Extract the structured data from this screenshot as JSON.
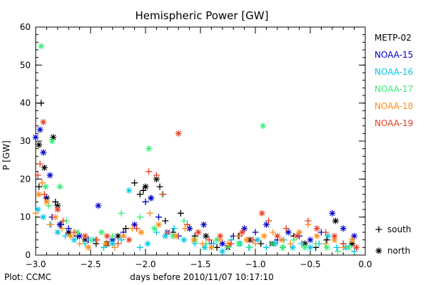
{
  "chart_data": {
    "type": "scatter",
    "title": "Hemispheric Power [GW]",
    "xlabel": "days before 2010/11/07 10:17:10",
    "ylabel": "P [GW]",
    "xlim": [
      -3.0,
      0.0
    ],
    "ylim": [
      0,
      60
    ],
    "x_ticks": [
      -3.0,
      -2.5,
      -2.0,
      -1.5,
      -1.0,
      -0.5,
      0.0
    ],
    "x_tick_labels": [
      "−3.0",
      "−2.5",
      "−2.0",
      "−1.5",
      "−1.0",
      "−0.5",
      "0.0"
    ],
    "y_ticks": [
      0,
      10,
      20,
      30,
      40,
      50,
      60
    ],
    "y_tick_labels": [
      "0",
      "10",
      "20",
      "30",
      "40",
      "50",
      "60"
    ],
    "credit": "Plot: CCMC",
    "legend_position": "right",
    "hemisphere_legend": [
      {
        "symbol": "+",
        "label": "south",
        "marker": "plus"
      },
      {
        "symbol": "*",
        "label": "north",
        "marker": "star"
      }
    ],
    "series": [
      {
        "name": "METP-02",
        "color": "#000000",
        "points": [
          [
            -2.95,
            40,
            "plus"
          ],
          [
            -2.97,
            29,
            "star"
          ],
          [
            -2.92,
            23,
            "star"
          ],
          [
            -2.84,
            31,
            "star"
          ],
          [
            -2.97,
            18,
            "plus"
          ],
          [
            -2.9,
            15,
            "star"
          ],
          [
            -2.82,
            14,
            "plus"
          ],
          [
            -2.8,
            13,
            "star"
          ],
          [
            -2.77,
            8,
            "plus"
          ],
          [
            -2.7,
            6,
            "star"
          ],
          [
            -2.62,
            5,
            "plus"
          ],
          [
            -2.55,
            4,
            "star"
          ],
          [
            -2.45,
            3,
            "plus"
          ],
          [
            -2.35,
            3,
            "star"
          ],
          [
            -2.25,
            5,
            "star"
          ],
          [
            -2.18,
            7,
            "plus"
          ],
          [
            -2.1,
            19,
            "plus"
          ],
          [
            -2.05,
            16,
            "plus"
          ],
          [
            -2.02,
            17,
            "plus"
          ],
          [
            -2.0,
            18,
            "star"
          ],
          [
            -1.95,
            15,
            "plus"
          ],
          [
            -1.9,
            20,
            "star"
          ],
          [
            -1.87,
            18,
            "plus"
          ],
          [
            -1.82,
            9,
            "plus"
          ],
          [
            -1.75,
            6,
            "plus"
          ],
          [
            -1.68,
            11,
            "plus"
          ],
          [
            -1.6,
            7,
            "plus"
          ],
          [
            -1.55,
            5,
            "plus"
          ],
          [
            -1.45,
            5,
            "star"
          ],
          [
            -1.35,
            2,
            "plus"
          ],
          [
            -1.25,
            2,
            "star"
          ],
          [
            -1.15,
            5,
            "plus"
          ],
          [
            -1.05,
            4,
            "star"
          ],
          [
            -0.95,
            3,
            "plus"
          ],
          [
            -0.85,
            3,
            "star"
          ],
          [
            -0.75,
            2,
            "plus"
          ],
          [
            -0.65,
            5,
            "plus"
          ],
          [
            -0.55,
            3,
            "star"
          ],
          [
            -0.45,
            2,
            "plus"
          ],
          [
            -0.35,
            4,
            "plus"
          ],
          [
            -0.27,
            9,
            "star"
          ],
          [
            -0.2,
            3,
            "plus"
          ],
          [
            -0.12,
            3,
            "star"
          ]
        ]
      },
      {
        "name": "NOAA-15",
        "color": "#0000cc",
        "points": [
          [
            -3.0,
            31,
            "star"
          ],
          [
            -2.96,
            33,
            "star"
          ],
          [
            -2.93,
            27,
            "star"
          ],
          [
            -2.87,
            21,
            "star"
          ],
          [
            -2.9,
            15,
            "plus"
          ],
          [
            -2.85,
            10,
            "plus"
          ],
          [
            -2.78,
            8,
            "star"
          ],
          [
            -2.7,
            7,
            "plus"
          ],
          [
            -2.6,
            5,
            "star"
          ],
          [
            -2.52,
            4,
            "plus"
          ],
          [
            -2.43,
            13,
            "star"
          ],
          [
            -2.3,
            4,
            "star"
          ],
          [
            -2.2,
            6,
            "plus"
          ],
          [
            -2.1,
            8,
            "star"
          ],
          [
            -2.0,
            14,
            "plus"
          ],
          [
            -1.95,
            15,
            "star"
          ],
          [
            -1.88,
            10,
            "plus"
          ],
          [
            -1.8,
            6,
            "star"
          ],
          [
            -1.7,
            5,
            "plus"
          ],
          [
            -1.6,
            7,
            "star"
          ],
          [
            -1.47,
            8,
            "star"
          ],
          [
            -1.4,
            3,
            "plus"
          ],
          [
            -1.3,
            3,
            "star"
          ],
          [
            -1.2,
            5,
            "plus"
          ],
          [
            -1.1,
            7,
            "star"
          ],
          [
            -1.0,
            6,
            "plus"
          ],
          [
            -0.9,
            8,
            "star"
          ],
          [
            -0.8,
            4,
            "plus"
          ],
          [
            -0.7,
            6,
            "star"
          ],
          [
            -0.6,
            5,
            "plus"
          ],
          [
            -0.5,
            4,
            "star"
          ],
          [
            -0.4,
            6,
            "plus"
          ],
          [
            -0.3,
            11,
            "star"
          ],
          [
            -0.2,
            7,
            "star"
          ],
          [
            -0.1,
            5,
            "star"
          ]
        ]
      },
      {
        "name": "NOAA-16",
        "color": "#00c8e6",
        "points": [
          [
            -2.98,
            12,
            "star"
          ],
          [
            -2.93,
            10,
            "star"
          ],
          [
            -2.87,
            8,
            "plus"
          ],
          [
            -2.8,
            6,
            "star"
          ],
          [
            -2.73,
            5,
            "plus"
          ],
          [
            -2.65,
            4,
            "star"
          ],
          [
            -2.55,
            3,
            "plus"
          ],
          [
            -2.47,
            4,
            "star"
          ],
          [
            -2.38,
            2,
            "plus"
          ],
          [
            -2.3,
            3,
            "star"
          ],
          [
            -2.22,
            4,
            "plus"
          ],
          [
            -2.15,
            17,
            "star"
          ],
          [
            -2.05,
            2,
            "plus"
          ],
          [
            -1.98,
            3,
            "star"
          ],
          [
            -1.9,
            6,
            "plus"
          ],
          [
            -1.82,
            5,
            "star"
          ],
          [
            -1.74,
            7,
            "plus"
          ],
          [
            -1.65,
            4,
            "star"
          ],
          [
            -1.55,
            3,
            "plus"
          ],
          [
            -1.46,
            2,
            "star"
          ],
          [
            -1.38,
            3,
            "plus"
          ],
          [
            -1.3,
            1,
            "star"
          ],
          [
            -1.22,
            4,
            "plus"
          ],
          [
            -1.14,
            3,
            "star"
          ],
          [
            -1.06,
            2,
            "plus"
          ],
          [
            -0.98,
            4,
            "star"
          ],
          [
            -0.9,
            2,
            "plus"
          ],
          [
            -0.82,
            3,
            "star"
          ],
          [
            -0.74,
            4,
            "plus"
          ],
          [
            -0.66,
            2,
            "star"
          ],
          [
            -0.58,
            3,
            "plus"
          ],
          [
            -0.5,
            2,
            "star"
          ],
          [
            -0.42,
            3,
            "plus"
          ],
          [
            -0.34,
            5,
            "star"
          ],
          [
            -0.26,
            2,
            "plus"
          ],
          [
            -0.18,
            2,
            "star"
          ],
          [
            -0.1,
            1,
            "plus"
          ]
        ]
      },
      {
        "name": "NOAA-17",
        "color": "#33ee77",
        "points": [
          [
            -2.95,
            55,
            "star"
          ],
          [
            -2.85,
            30,
            "star"
          ],
          [
            -2.91,
            18,
            "star"
          ],
          [
            -2.88,
            13,
            "plus"
          ],
          [
            -2.78,
            18,
            "star"
          ],
          [
            -2.72,
            9,
            "plus"
          ],
          [
            -2.62,
            6,
            "star"
          ],
          [
            -2.5,
            4,
            "plus"
          ],
          [
            -2.4,
            6,
            "star"
          ],
          [
            -2.3,
            5,
            "plus"
          ],
          [
            -2.22,
            11,
            "plus"
          ],
          [
            -1.97,
            28,
            "star"
          ],
          [
            -2.05,
            10,
            "plus"
          ],
          [
            -1.92,
            7,
            "star"
          ],
          [
            -1.85,
            16,
            "plus"
          ],
          [
            -1.75,
            5,
            "star"
          ],
          [
            -1.65,
            9,
            "plus"
          ],
          [
            -1.55,
            4,
            "star"
          ],
          [
            -1.45,
            3,
            "plus"
          ],
          [
            -1.35,
            4,
            "star"
          ],
          [
            -1.25,
            2,
            "plus"
          ],
          [
            -1.15,
            3,
            "star"
          ],
          [
            -1.05,
            2,
            "plus"
          ],
          [
            -0.93,
            34,
            "star"
          ],
          [
            -0.85,
            3,
            "plus"
          ],
          [
            -0.75,
            2,
            "star"
          ],
          [
            -0.65,
            4,
            "plus"
          ],
          [
            -0.55,
            2,
            "star"
          ],
          [
            -0.45,
            3,
            "plus"
          ],
          [
            -0.35,
            2,
            "star"
          ],
          [
            -0.25,
            1,
            "plus"
          ],
          [
            -0.15,
            2,
            "star"
          ]
        ]
      },
      {
        "name": "NOAA-18",
        "color": "#ff8c1a",
        "points": [
          [
            -3.0,
            11,
            "plus"
          ],
          [
            -2.97,
            16,
            "star"
          ],
          [
            -2.94,
            19,
            "plus"
          ],
          [
            -2.9,
            14,
            "star"
          ],
          [
            -2.86,
            8,
            "plus"
          ],
          [
            -2.82,
            10,
            "star"
          ],
          [
            -2.76,
            7,
            "plus"
          ],
          [
            -2.68,
            5,
            "star"
          ],
          [
            -2.6,
            3,
            "plus"
          ],
          [
            -2.52,
            2,
            "star"
          ],
          [
            -2.44,
            4,
            "plus"
          ],
          [
            -2.36,
            3,
            "star"
          ],
          [
            -2.28,
            2,
            "plus"
          ],
          [
            -2.2,
            5,
            "star"
          ],
          [
            -2.12,
            7,
            "plus"
          ],
          [
            -2.04,
            6,
            "star"
          ],
          [
            -1.96,
            11,
            "plus"
          ],
          [
            -1.88,
            8,
            "star"
          ],
          [
            -1.8,
            6,
            "plus"
          ],
          [
            -1.72,
            5,
            "star"
          ],
          [
            -1.64,
            7,
            "plus"
          ],
          [
            -1.56,
            4,
            "star"
          ],
          [
            -1.48,
            3,
            "plus"
          ],
          [
            -1.4,
            2,
            "star"
          ],
          [
            -1.32,
            4,
            "plus"
          ],
          [
            -1.24,
            3,
            "star"
          ],
          [
            -1.16,
            5,
            "plus"
          ],
          [
            -1.08,
            4,
            "star"
          ],
          [
            -1.0,
            3,
            "plus"
          ],
          [
            -0.92,
            5,
            "star"
          ],
          [
            -0.84,
            6,
            "plus"
          ],
          [
            -0.76,
            4,
            "star"
          ],
          [
            -0.68,
            3,
            "plus"
          ],
          [
            -0.6,
            6,
            "star"
          ],
          [
            -0.52,
            8,
            "plus"
          ],
          [
            -0.44,
            5,
            "star"
          ],
          [
            -0.36,
            3,
            "plus"
          ],
          [
            -0.28,
            4,
            "star"
          ],
          [
            -0.2,
            2,
            "plus"
          ],
          [
            -0.12,
            4,
            "star"
          ]
        ]
      },
      {
        "name": "NOAA-19",
        "color": "#e63c1e",
        "points": [
          [
            -2.93,
            35,
            "star"
          ],
          [
            -2.96,
            24,
            "plus"
          ],
          [
            -2.98,
            21,
            "plus"
          ],
          [
            -2.92,
            16,
            "plus"
          ],
          [
            -2.8,
            12,
            "star"
          ],
          [
            -2.75,
            9,
            "plus"
          ],
          [
            -2.65,
            6,
            "plus"
          ],
          [
            -2.55,
            5,
            "star"
          ],
          [
            -2.45,
            4,
            "plus"
          ],
          [
            -2.35,
            5,
            "star"
          ],
          [
            -2.25,
            3,
            "plus"
          ],
          [
            -2.15,
            4,
            "star"
          ],
          [
            -2.08,
            7,
            "plus"
          ],
          [
            -1.97,
            22,
            "plus"
          ],
          [
            -1.9,
            21,
            "plus"
          ],
          [
            -1.84,
            16,
            "plus"
          ],
          [
            -1.7,
            32,
            "star"
          ],
          [
            -1.62,
            8,
            "plus"
          ],
          [
            -1.52,
            6,
            "star"
          ],
          [
            -1.42,
            4,
            "plus"
          ],
          [
            -1.32,
            5,
            "star"
          ],
          [
            -1.22,
            3,
            "plus"
          ],
          [
            -1.12,
            6,
            "star"
          ],
          [
            -1.02,
            4,
            "plus"
          ],
          [
            -0.94,
            11,
            "star"
          ],
          [
            -0.88,
            9,
            "plus"
          ],
          [
            -0.8,
            5,
            "star"
          ],
          [
            -0.72,
            7,
            "plus"
          ],
          [
            -0.62,
            5,
            "star"
          ],
          [
            -0.52,
            9,
            "plus"
          ],
          [
            -0.44,
            7,
            "star"
          ],
          [
            -0.36,
            6,
            "plus"
          ],
          [
            -0.28,
            5,
            "star"
          ],
          [
            -0.2,
            3,
            "plus"
          ],
          [
            -0.08,
            2,
            "star"
          ]
        ]
      }
    ]
  }
}
